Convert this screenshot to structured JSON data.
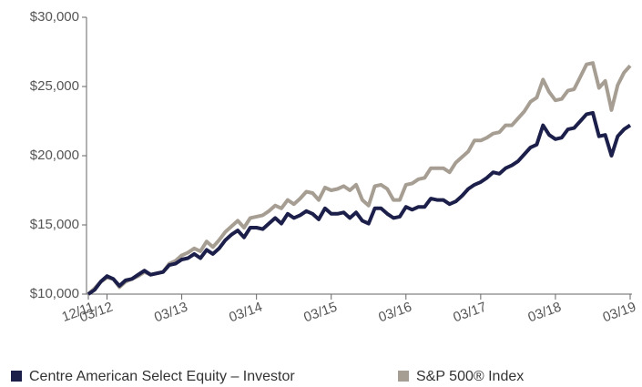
{
  "chart_data": {
    "type": "line",
    "categories": [
      "12/11",
      null,
      null,
      "03/12",
      null,
      null,
      null,
      null,
      null,
      null,
      null,
      null,
      null,
      null,
      null,
      "03/13",
      null,
      null,
      null,
      null,
      null,
      null,
      null,
      null,
      null,
      null,
      null,
      "03/14",
      null,
      null,
      null,
      null,
      null,
      null,
      null,
      null,
      null,
      null,
      null,
      "03/15",
      null,
      null,
      null,
      null,
      null,
      null,
      null,
      null,
      null,
      null,
      null,
      "03/16",
      null,
      null,
      null,
      null,
      null,
      null,
      null,
      null,
      null,
      null,
      null,
      "03/17",
      null,
      null,
      null,
      null,
      null,
      null,
      null,
      null,
      null,
      null,
      null,
      "03/18",
      null,
      null,
      null,
      null,
      null,
      null,
      null,
      null,
      null,
      null,
      null,
      "03/19"
    ],
    "series": [
      {
        "name": "Centre American Select Equity – Investor",
        "color": "#1c1f4a",
        "values": [
          10000,
          10300,
          10900,
          11300,
          11100,
          10600,
          11000,
          11100,
          11400,
          11700,
          11400,
          11500,
          11600,
          12100,
          12200,
          12500,
          12600,
          12900,
          12600,
          13200,
          12900,
          13300,
          13900,
          14300,
          14600,
          14100,
          14800,
          14800,
          14700,
          15100,
          15500,
          15100,
          15800,
          15500,
          15700,
          16000,
          15800,
          15400,
          16200,
          15800,
          15800,
          15900,
          15500,
          15900,
          15300,
          15100,
          16200,
          16200,
          15800,
          15500,
          15600,
          16300,
          16100,
          16300,
          16300,
          16900,
          16800,
          16800,
          16500,
          16700,
          17100,
          17600,
          17900,
          18100,
          18400,
          18800,
          18700,
          19100,
          19300,
          19600,
          20100,
          20600,
          20800,
          22200,
          21500,
          21200,
          21300,
          21900,
          22000,
          22500,
          23000,
          23100,
          21400,
          21500,
          20000,
          21400,
          21900,
          22200
        ]
      },
      {
        "name": "S&P 500® Index",
        "color": "#a79e93",
        "values": [
          10000,
          10400,
          10900,
          11200,
          11100,
          10500,
          10900,
          11100,
          11300,
          11600,
          11400,
          11500,
          11600,
          12200,
          12400,
          12800,
          13000,
          13300,
          13100,
          13800,
          13400,
          13900,
          14500,
          14900,
          15300,
          14800,
          15500,
          15600,
          15700,
          16000,
          16400,
          16200,
          16800,
          16500,
          16900,
          17400,
          17300,
          16800,
          17700,
          17500,
          17600,
          17800,
          17500,
          17900,
          16800,
          16400,
          17800,
          17900,
          17600,
          16800,
          16800,
          17900,
          18000,
          18300,
          18400,
          19100,
          19100,
          19100,
          18800,
          19500,
          19900,
          20300,
          21100,
          21100,
          21300,
          21600,
          21700,
          22200,
          22200,
          22700,
          23200,
          23900,
          24200,
          25500,
          24600,
          24000,
          24100,
          24700,
          24800,
          25700,
          26600,
          26700,
          24900,
          25400,
          23300,
          25100,
          26000,
          26500
        ]
      }
    ],
    "ylim": [
      10000,
      30000
    ],
    "yticks": [
      {
        "value": 10000,
        "label": "$10,000"
      },
      {
        "value": 15000,
        "label": "$15,000"
      },
      {
        "value": 20000,
        "label": "$20,000"
      },
      {
        "value": 25000,
        "label": "$25,000"
      },
      {
        "value": 30000,
        "label": "$30,000"
      }
    ],
    "grid": false
  }
}
